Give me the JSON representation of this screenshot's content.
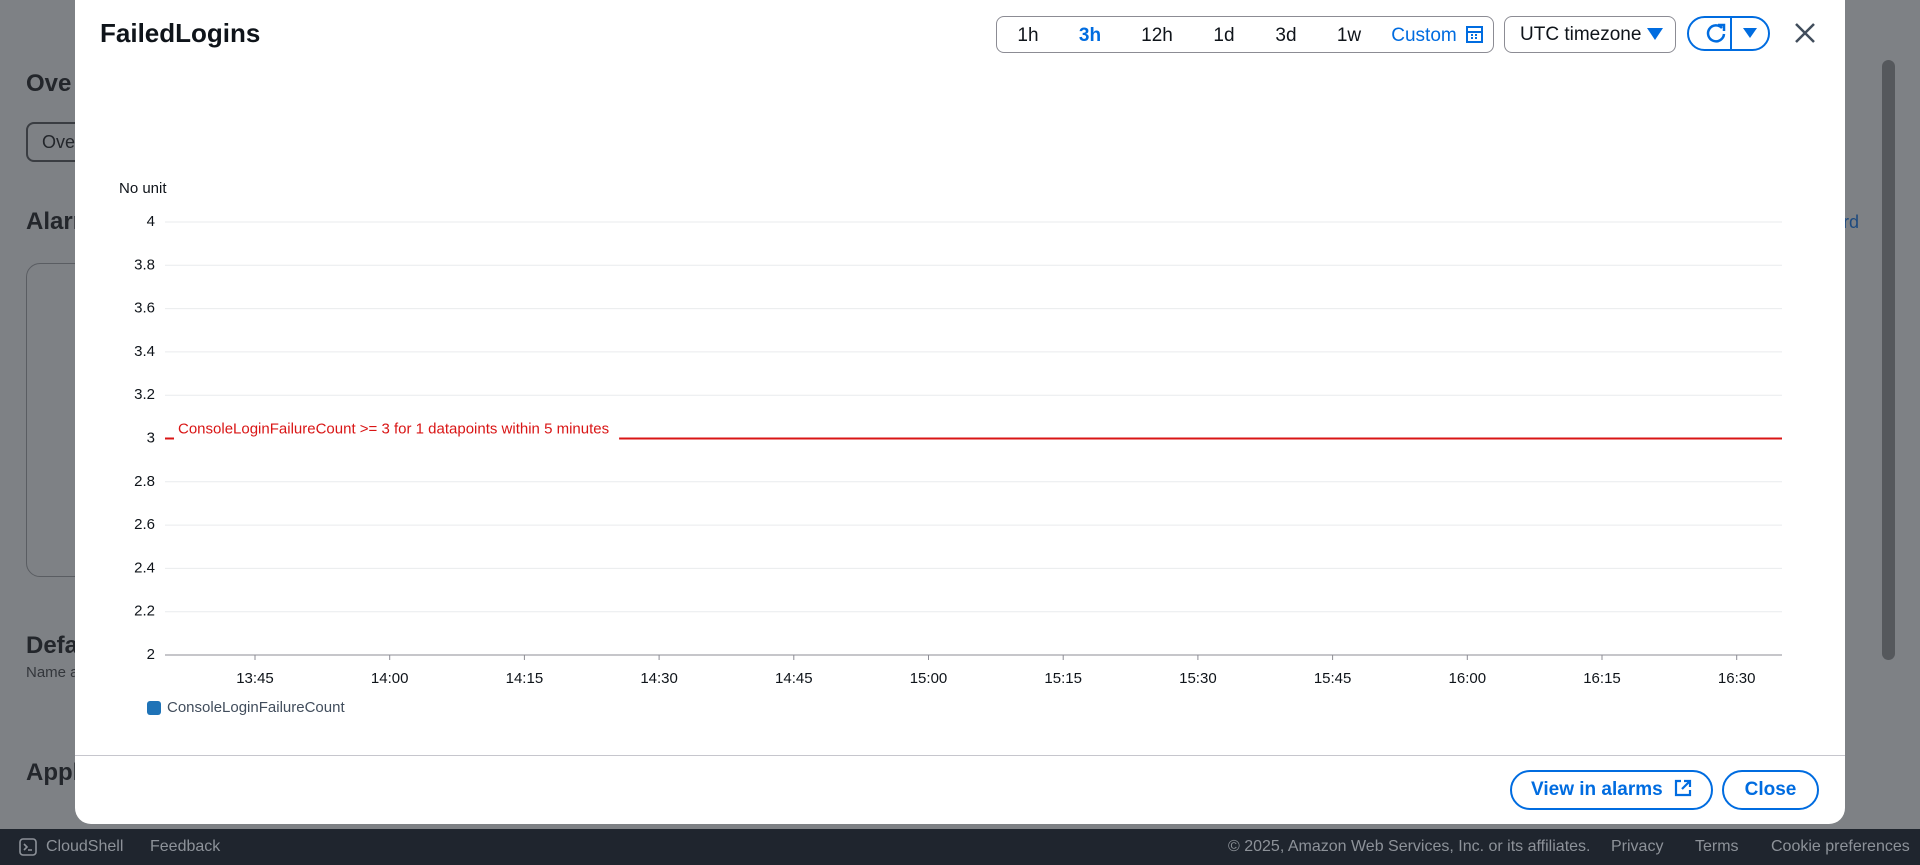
{
  "background": {
    "texts": [
      "Ove",
      "Ove",
      "Alarn",
      "Defa",
      "Name a",
      "Appl",
      "rd"
    ]
  },
  "modal": {
    "title": "FailedLogins",
    "time_ranges": [
      "1h",
      "3h",
      "12h",
      "1d",
      "3d",
      "1w",
      "Custom"
    ],
    "timezone": "UTC timezone",
    "buttons": {
      "view": "View in alarms",
      "close": "Close"
    }
  },
  "chart_data": {
    "type": "line",
    "y_label": "No unit",
    "x": [
      "13:45",
      "14:00",
      "14:15",
      "14:30",
      "14:45",
      "15:00",
      "15:15",
      "15:30",
      "15:45",
      "16:00",
      "16:15",
      "16:30"
    ],
    "series": [
      {
        "name": "ConsoleLoginFailureCount",
        "color": "#1f73b7",
        "values": [
          null,
          null,
          null,
          null,
          null,
          null,
          null,
          null,
          null,
          null,
          null,
          null
        ]
      }
    ],
    "ylim": [
      2,
      4
    ],
    "yticks": [
      2,
      2.2,
      2.4,
      2.6,
      2.8,
      3,
      3.2,
      3.4,
      3.6,
      3.8,
      4
    ],
    "grid": true,
    "threshold": {
      "value": 3,
      "label": "ConsoleLoginFailureCount >= 3 for 1 datapoints within 5 minutes",
      "color": "#d91515"
    }
  },
  "footer": {
    "left": [
      "CloudShell",
      "Feedback"
    ],
    "copyright": "© 2025, Amazon Web Services, Inc. or its affiliates.",
    "links": [
      "Privacy",
      "Terms",
      "Cookie preferences"
    ]
  }
}
